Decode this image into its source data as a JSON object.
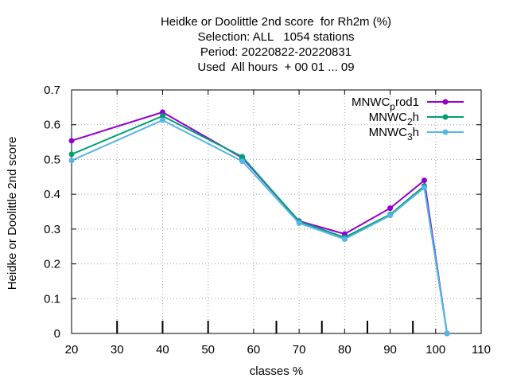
{
  "chart_data": {
    "type": "line",
    "title_lines": [
      "Heidke or Doolittle 2nd score  for Rh2m (%)",
      "Selection: ALL   1054 stations",
      "Period: 20220822-20220831",
      "Used  All hours  + 00 01 ... 09"
    ],
    "xlabel": "classes %",
    "ylabel": "Heidke or Doolittle 2nd score",
    "xlim": [
      20,
      110
    ],
    "ylim": [
      0,
      0.7
    ],
    "xticks": [
      "20",
      "30",
      "40",
      "50",
      "60",
      "70",
      "80",
      "90",
      "100",
      "110"
    ],
    "yticks": [
      "0",
      "0.1",
      "0.2",
      "0.3",
      "0.4",
      "0.5",
      "0.6",
      "0.7"
    ],
    "grid": true,
    "legend_position": "top-right",
    "class_markers": [
      30,
      40,
      50,
      65,
      75,
      85,
      95
    ],
    "series": [
      {
        "name": "MNWC_prod1",
        "legend_base": "MNWC",
        "legend_sub": "p",
        "legend_rest": "rod1",
        "color": "#9400d3",
        "x": [
          20,
          40,
          57.5,
          70,
          80,
          90,
          97.5,
          102.5
        ],
        "y": [
          0.554,
          0.636,
          0.505,
          0.323,
          0.286,
          0.36,
          0.44,
          0.0
        ]
      },
      {
        "name": "MNWC_2h",
        "legend_base": "MNWC",
        "legend_sub": "2",
        "legend_rest": "h",
        "color": "#009e73",
        "x": [
          20,
          40,
          57.5,
          70,
          80,
          90,
          97.5,
          102.5
        ],
        "y": [
          0.515,
          0.625,
          0.508,
          0.322,
          0.276,
          0.342,
          0.424,
          0.0
        ]
      },
      {
        "name": "MNWC_3h",
        "legend_base": "MNWC",
        "legend_sub": "3",
        "legend_rest": "h",
        "color": "#56b4e9",
        "x": [
          20,
          40,
          57.5,
          70,
          80,
          90,
          97.5,
          102.5
        ],
        "y": [
          0.497,
          0.613,
          0.495,
          0.317,
          0.271,
          0.339,
          0.419,
          0.0
        ]
      }
    ]
  }
}
